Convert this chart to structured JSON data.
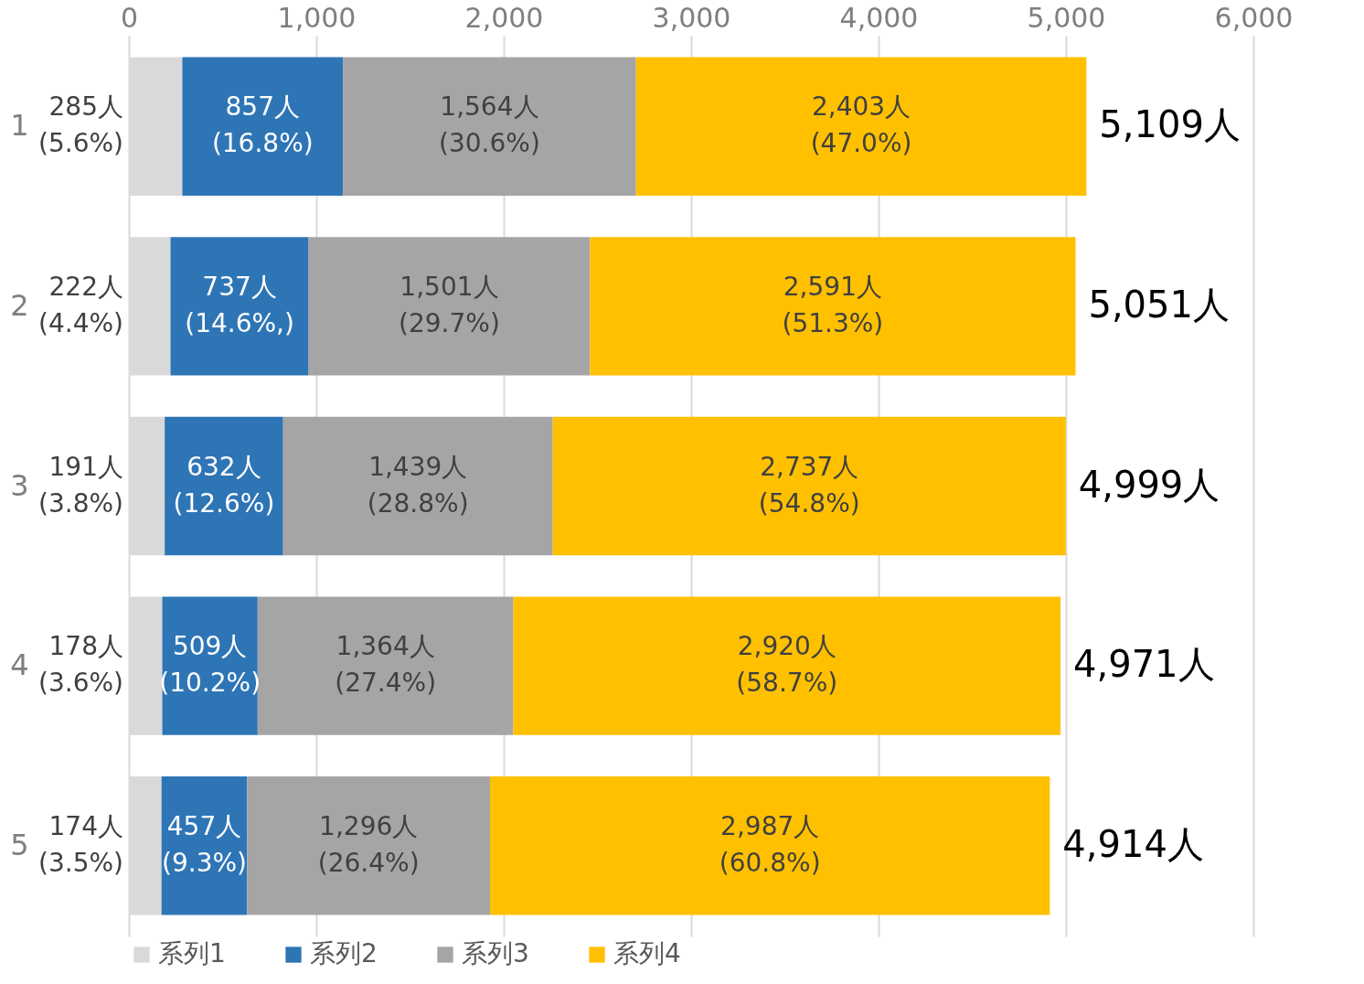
{
  "chart_data": {
    "type": "bar",
    "orientation": "horizontal",
    "stacked": true,
    "categories": [
      "1",
      "2",
      "3",
      "4",
      "5"
    ],
    "series": [
      {
        "name": "系列1",
        "color": "#d9d9d9",
        "values": [
          285,
          222,
          191,
          178,
          174
        ],
        "value_labels": [
          "285人\n(5.6%)",
          "222人\n(4.4%)",
          "191人\n(3.8%)",
          "178人\n(3.6%)",
          "174人\n(3.5%)"
        ]
      },
      {
        "name": "系列2",
        "color": "#2e75b6",
        "values": [
          857,
          737,
          632,
          509,
          457
        ],
        "value_labels": [
          "857人\n(16.8%)",
          "737人\n(14.6%,)",
          "632人\n(12.6%)",
          "509人\n(10.2%)",
          "457人\n(9.3%)"
        ]
      },
      {
        "name": "系列3",
        "color": "#a5a5a5",
        "values": [
          1564,
          1501,
          1439,
          1364,
          1296
        ],
        "value_labels": [
          "1,564人\n(30.6%)",
          "1,501人\n(29.7%)",
          "1,439人\n(28.8%)",
          "1,364人\n(27.4%)",
          "1,296人\n(26.4%)"
        ]
      },
      {
        "name": "系列4",
        "color": "#ffc000",
        "values": [
          2403,
          2591,
          2737,
          2920,
          2987
        ],
        "value_labels": [
          "2,403人\n(47.0%)",
          "2,591人\n(51.3%)",
          "2,737人\n(54.8%)",
          "2,920人\n(58.7%)",
          "2,987人\n(60.8%)"
        ]
      }
    ],
    "totals": [
      "5,109人",
      "5,051人",
      "4,999人",
      "4,971人",
      "4,914人"
    ],
    "xlim": [
      0,
      6000
    ],
    "xticks": [
      0,
      {
        "value": 1000,
        "label": "1,000"
      },
      {
        "value": 2000,
        "label": "2,000"
      },
      {
        "value": 3000,
        "label": "3,000"
      },
      {
        "value": 4000,
        "label": "4,000"
      },
      {
        "value": 5000,
        "label": "5,000"
      },
      {
        "value": 6000,
        "label": "6,000"
      }
    ],
    "grid": "x",
    "legend": "bottom"
  }
}
